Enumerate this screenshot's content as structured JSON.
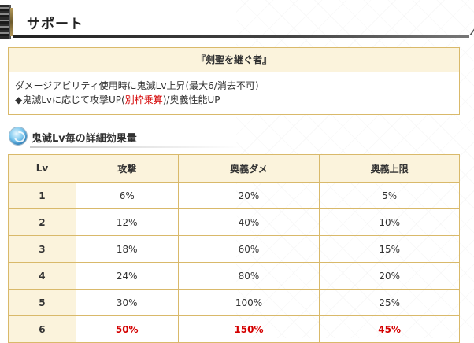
{
  "section": {
    "title": "サポート"
  },
  "support_box": {
    "title": "『剣聖を継ぐ者』",
    "line1": "ダメージアビリティ使用時に鬼滅Lv上昇(最大6/消去不可)",
    "line2_prefix": "◆鬼滅Lvに応じて攻撃UP(",
    "line2_highlight": "別枠乗算",
    "line2_suffix": ")/奥義性能UP",
    "highlight_color": "#d40000"
  },
  "sub_section": {
    "icon": "blue-orb-icon",
    "title": "鬼滅Lv毎の詳細効果量"
  },
  "table": {
    "headers": [
      "Lv",
      "攻撃",
      "奥義ダメ",
      "奥義上限"
    ],
    "rows": [
      {
        "lv": "1",
        "attack": "6%",
        "ougi_dmg": "20%",
        "ougi_cap": "5%"
      },
      {
        "lv": "2",
        "attack": "12%",
        "ougi_dmg": "40%",
        "ougi_cap": "10%"
      },
      {
        "lv": "3",
        "attack": "18%",
        "ougi_dmg": "60%",
        "ougi_cap": "15%"
      },
      {
        "lv": "4",
        "attack": "24%",
        "ougi_dmg": "80%",
        "ougi_cap": "20%"
      },
      {
        "lv": "5",
        "attack": "30%",
        "ougi_dmg": "100%",
        "ougi_cap": "25%"
      },
      {
        "lv": "6",
        "attack": "50%",
        "ougi_dmg": "150%",
        "ougi_cap": "45%"
      }
    ]
  },
  "colors": {
    "border": "#d9b96a",
    "header_bg": "#fbf3dc",
    "max_value": "#d40000"
  }
}
